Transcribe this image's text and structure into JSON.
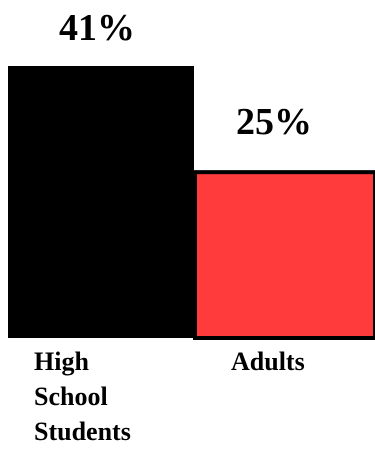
{
  "chart_data": {
    "type": "bar",
    "title": "",
    "xlabel": "",
    "ylabel": "",
    "categories": [
      "High School Students",
      "Adults"
    ],
    "category_lines": [
      [
        "High",
        "School",
        "Students"
      ],
      [
        "Adults"
      ]
    ],
    "values": [
      41,
      25
    ],
    "value_labels": [
      "41%",
      "25%"
    ],
    "colors": [
      "#000000",
      "#ff3b3b"
    ],
    "ylim": [
      0,
      41
    ],
    "grid": false,
    "legend": "none"
  }
}
